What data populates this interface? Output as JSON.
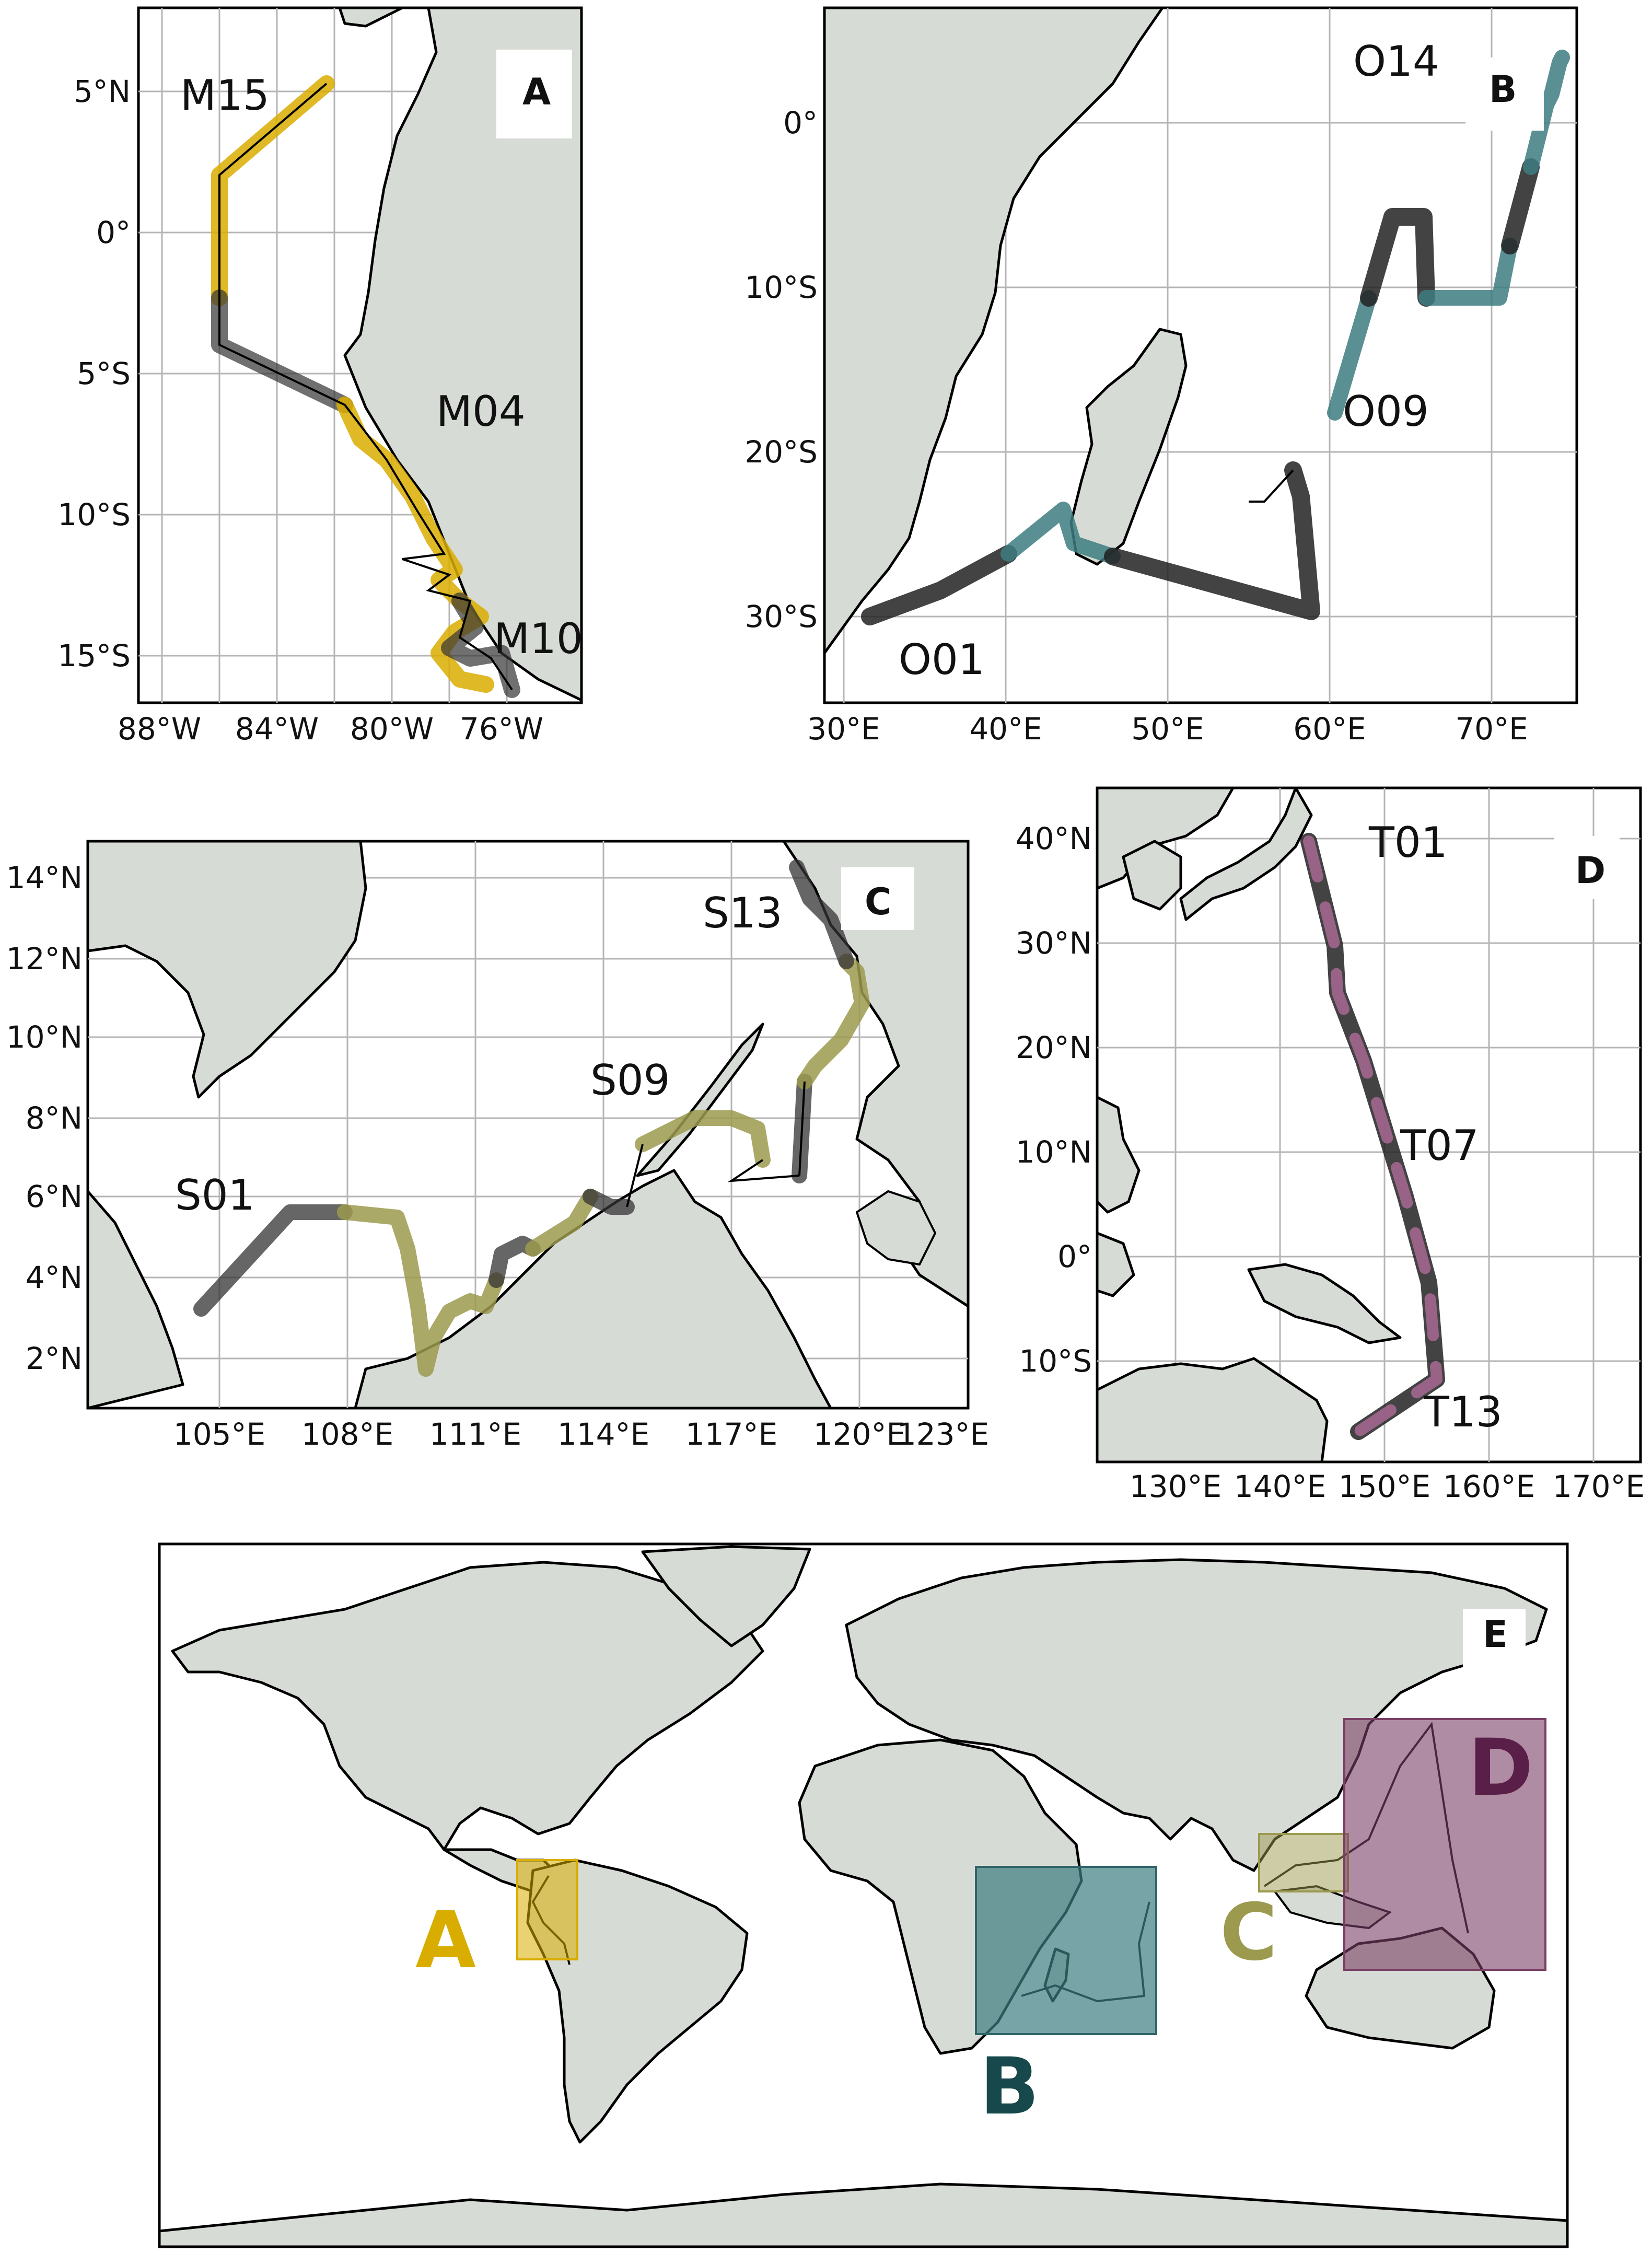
{
  "panels": {
    "A": {
      "letter": "A",
      "stations": [
        "M15",
        "M04",
        "M10"
      ],
      "lat_ticks": [
        "5°N",
        "0°",
        "5°S",
        "10°S",
        "15°S"
      ],
      "lon_ticks": [
        "88°W",
        "84°W",
        "80°W",
        "76°W"
      ]
    },
    "B": {
      "letter": "B",
      "stations": [
        "O14",
        "O09",
        "O01"
      ],
      "lat_ticks": [
        "0°",
        "10°S",
        "20°S",
        "30°S"
      ],
      "lon_ticks": [
        "30°E",
        "40°E",
        "50°E",
        "60°E",
        "70°E"
      ]
    },
    "C": {
      "letter": "C",
      "stations": [
        "S13",
        "S09",
        "S01"
      ],
      "lat_ticks": [
        "14°N",
        "12°N",
        "10°N",
        "8°N",
        "6°N",
        "4°N",
        "2°N"
      ],
      "lon_ticks": [
        "105°E",
        "108°E",
        "111°E",
        "114°E",
        "117°E",
        "120°E",
        "123°E"
      ]
    },
    "D": {
      "letter": "D",
      "stations": [
        "T01",
        "T07",
        "T13"
      ],
      "lat_ticks": [
        "40°N",
        "30°N",
        "20°N",
        "10°N",
        "0°",
        "10°S"
      ],
      "lon_ticks": [
        "130°E",
        "140°E",
        "150°E",
        "160°E",
        "170°E"
      ]
    },
    "E": {
      "letter": "E",
      "regions": [
        "A",
        "B",
        "C",
        "D"
      ]
    }
  },
  "colors": {
    "A": "#d9ad00",
    "B": "#3d7d80",
    "C": "#9c9a4e",
    "D": "#7a3f65",
    "land": "#d7dbd5",
    "route_dark": "#222222"
  }
}
